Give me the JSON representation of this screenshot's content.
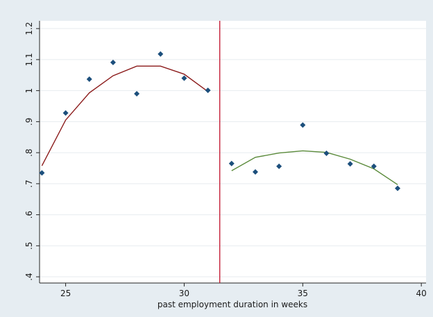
{
  "chart_data": {
    "type": "scatter",
    "title": "",
    "xlabel": "past employment duration in weeks",
    "ylabel": "",
    "xlim": [
      23.9,
      40.2
    ],
    "ylim": [
      0.38,
      1.225
    ],
    "x_ticks": [
      25,
      30,
      35,
      40
    ],
    "x_tick_labels": [
      "25",
      "30",
      "35",
      "40"
    ],
    "y_ticks": [
      0.4,
      0.5,
      0.6,
      0.7,
      0.8,
      0.9,
      1.0,
      1.1,
      1.2
    ],
    "y_tick_labels": [
      ".4",
      ".5",
      ".6",
      ".7",
      ".8",
      ".9",
      "1",
      "1.1",
      "1.2"
    ],
    "grid": true,
    "legend": "none",
    "cutoff_x": 31.5,
    "points": {
      "color": "#1c4f7c",
      "x": [
        24,
        25,
        26,
        27,
        28,
        29,
        30,
        31,
        32,
        33,
        34,
        35,
        36,
        37,
        38,
        39
      ],
      "y": [
        0.735,
        0.928,
        1.037,
        1.091,
        0.99,
        1.118,
        1.04,
        1.001,
        0.765,
        0.738,
        0.756,
        0.889,
        0.798,
        0.764,
        0.756,
        0.685
      ]
    },
    "fits": [
      {
        "color": "#8b1a1a",
        "x": [
          24,
          25,
          26,
          27,
          28,
          29,
          30,
          31
        ],
        "y": [
          0.758,
          0.905,
          0.993,
          1.048,
          1.079,
          1.079,
          1.053,
          0.997
        ]
      },
      {
        "color": "#5a8a3a",
        "x": [
          32,
          33,
          34,
          35,
          36,
          37,
          38,
          39
        ],
        "y": [
          0.742,
          0.785,
          0.799,
          0.806,
          0.801,
          0.779,
          0.748,
          0.697
        ]
      }
    ],
    "cutoff_color": "#c0102a",
    "plot_background": "#ffffff",
    "page_background": "#e6edf2"
  }
}
